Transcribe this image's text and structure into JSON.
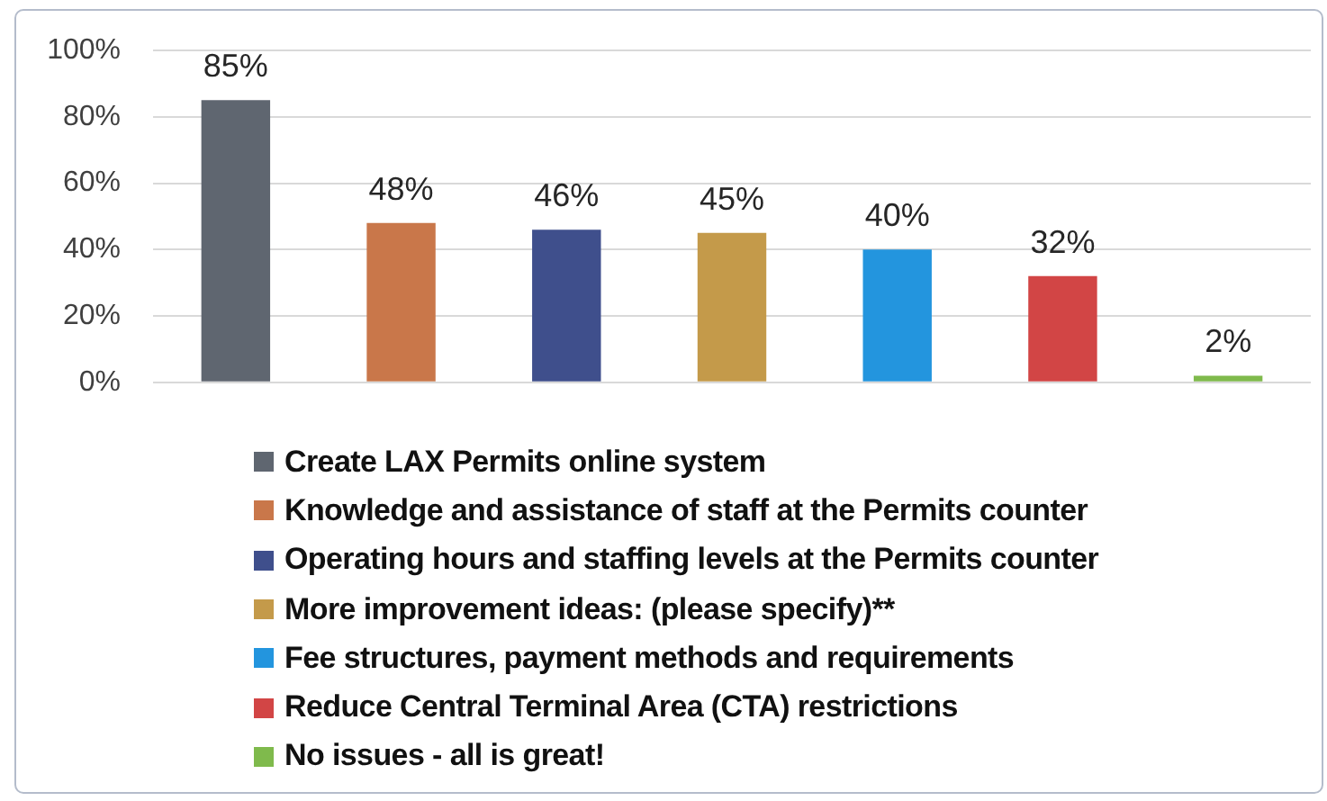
{
  "chart_data": {
    "type": "bar",
    "categories": [
      null,
      null,
      null,
      null,
      null,
      null,
      null
    ],
    "series": [
      {
        "name": "Create LAX Permits online system",
        "color": "#5f6670",
        "values": [
          85,
          null,
          null,
          null,
          null,
          null,
          null
        ],
        "value_labels": [
          "85%",
          null,
          null,
          null,
          null,
          null,
          null
        ]
      },
      {
        "name": "Knowledge and assistance of staff at the Permits counter",
        "color": "#c9774a",
        "values": [
          null,
          48,
          null,
          null,
          null,
          null,
          null
        ],
        "value_labels": [
          null,
          "48%",
          null,
          null,
          null,
          null,
          null
        ]
      },
      {
        "name": "Operating hours and staffing levels at the Permits counter",
        "color": "#3f4f8c",
        "values": [
          null,
          null,
          46,
          null,
          null,
          null,
          null
        ],
        "value_labels": [
          null,
          null,
          "46%",
          null,
          null,
          null,
          null
        ]
      },
      {
        "name": "More improvement ideas: (please specify)**",
        "color": "#c49a4a",
        "values": [
          null,
          null,
          null,
          45,
          null,
          null,
          null
        ],
        "value_labels": [
          null,
          null,
          null,
          "45%",
          null,
          null,
          null
        ]
      },
      {
        "name": "Fee structures, payment methods and requirements",
        "color": "#2395de",
        "values": [
          null,
          null,
          null,
          null,
          40,
          null,
          null
        ],
        "value_labels": [
          null,
          null,
          null,
          null,
          "40%",
          null,
          null
        ]
      },
      {
        "name": "Reduce Central Terminal Area (CTA) restrictions",
        "color": "#d24545",
        "values": [
          null,
          null,
          null,
          null,
          null,
          32,
          null
        ],
        "value_labels": [
          null,
          null,
          null,
          null,
          null,
          "32%",
          null
        ]
      },
      {
        "name": "No issues - all is great!",
        "color": "#7fba4c",
        "values": [
          null,
          null,
          null,
          null,
          null,
          null,
          2
        ],
        "value_labels": [
          null,
          null,
          null,
          null,
          null,
          null,
          "2%"
        ]
      }
    ],
    "ylim": [
      0,
      100
    ],
    "yticks": [
      {
        "value": 0,
        "label": "0%"
      },
      {
        "value": 20,
        "label": "20%"
      },
      {
        "value": 40,
        "label": "40%"
      },
      {
        "value": 60,
        "label": "60%"
      },
      {
        "value": 80,
        "label": "80%"
      },
      {
        "value": 100,
        "label": "100%"
      }
    ],
    "grid": "y",
    "legend": "bottom"
  }
}
